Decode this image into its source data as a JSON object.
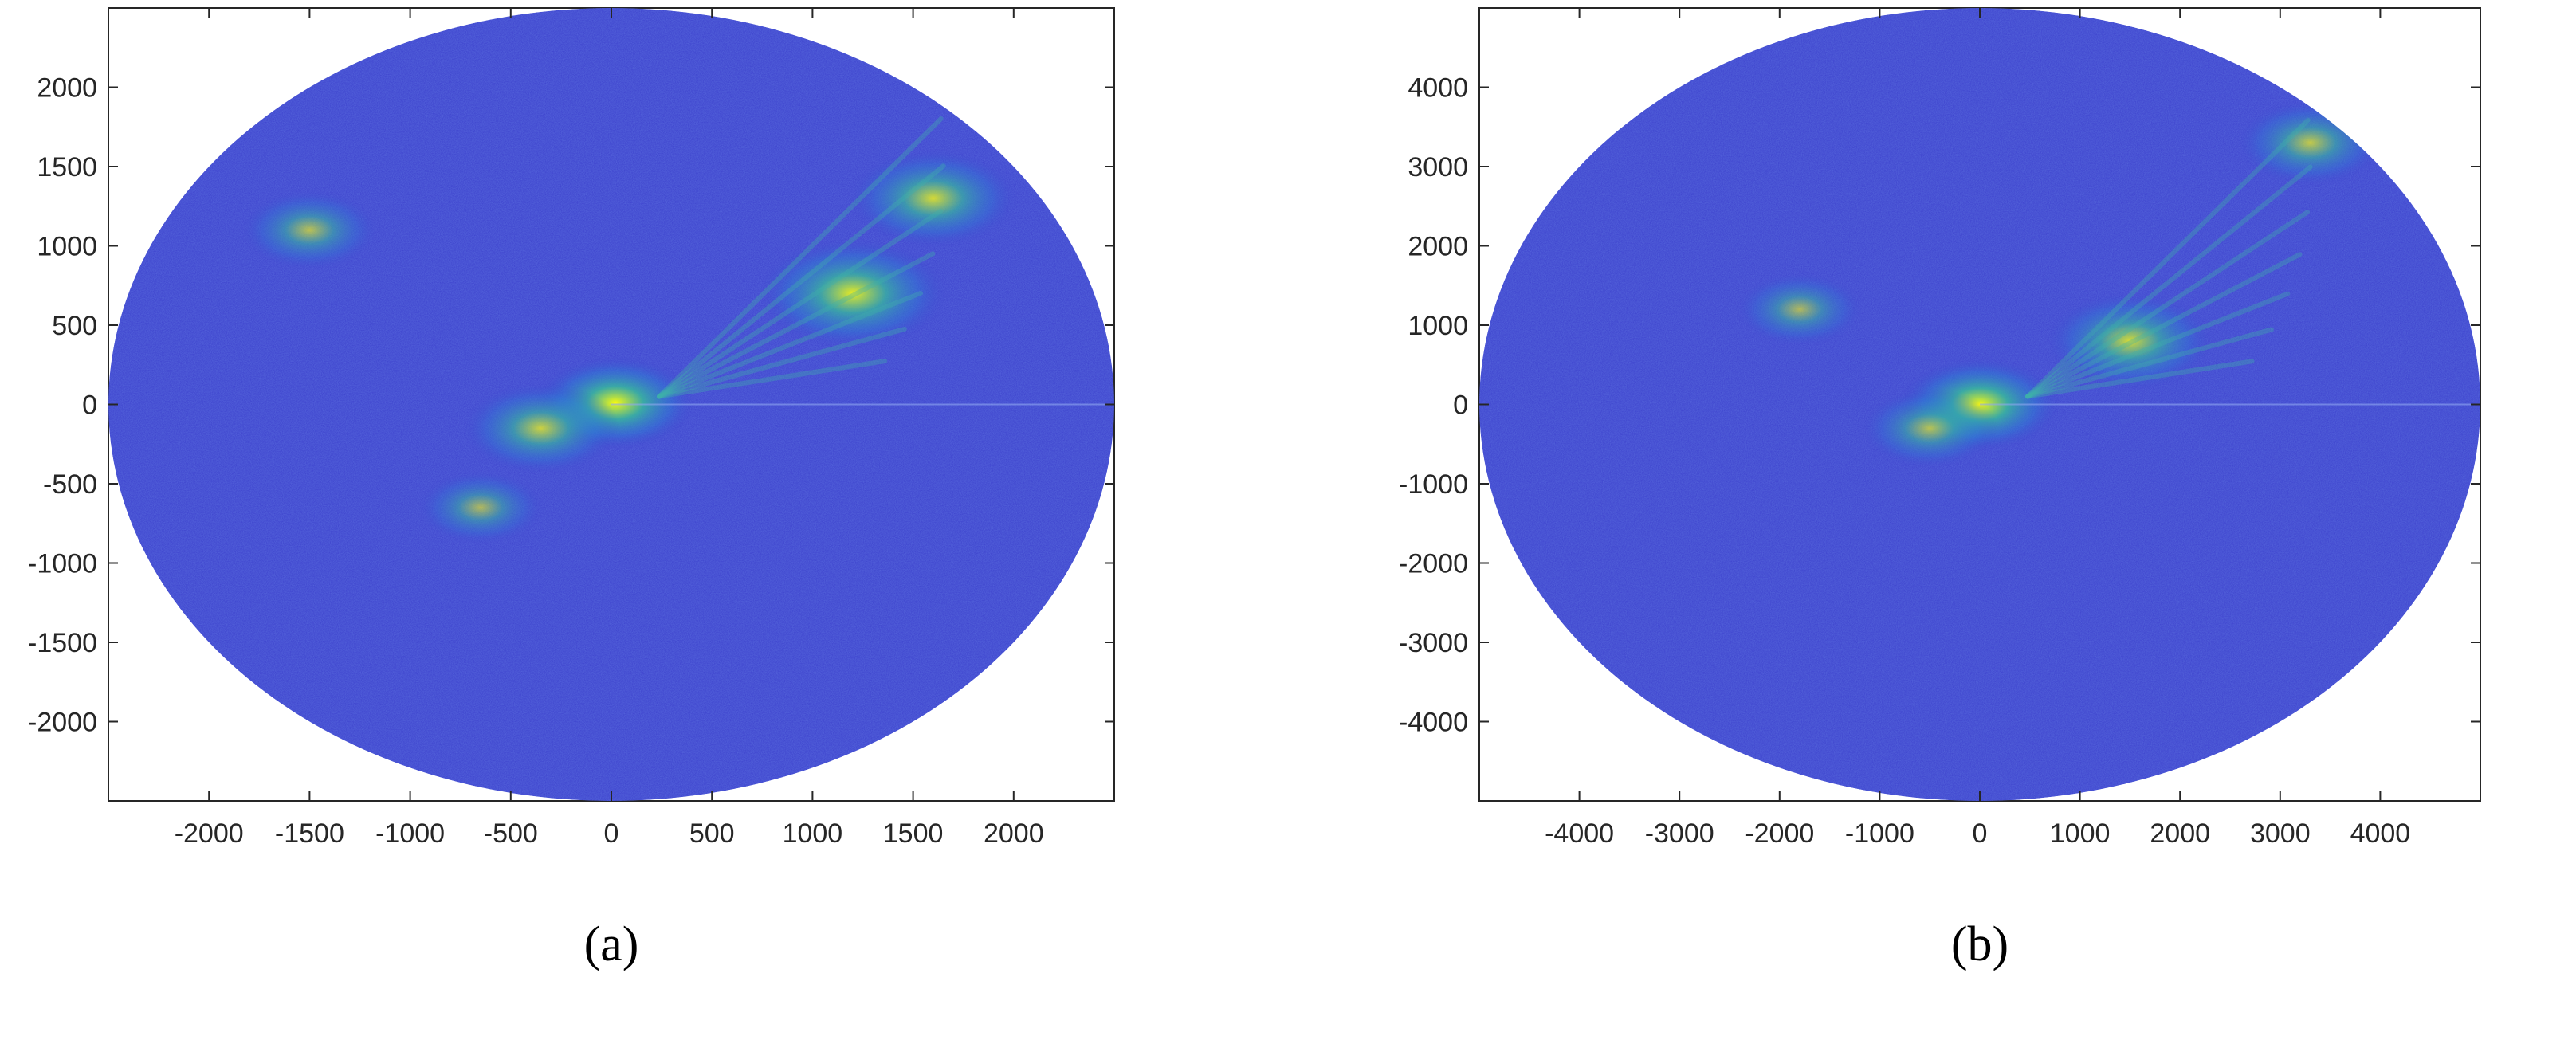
{
  "chart_data": [
    {
      "type": "heatmap",
      "panel_label": "(a)",
      "xlim": [
        -2500,
        2500
      ],
      "ylim": [
        -2500,
        2500
      ],
      "x_ticks": [
        -2000,
        -1500,
        -1000,
        -500,
        0,
        500,
        1000,
        1500,
        2000
      ],
      "y_ticks": [
        2000,
        1500,
        1000,
        500,
        0,
        -500,
        -1000,
        -1500,
        -2000
      ],
      "x_tick_labels": [
        "-2000",
        "-1500",
        "-1000",
        "-500",
        "0",
        "500",
        "1000",
        "1500",
        "2000"
      ],
      "y_tick_labels": [
        "2000",
        "1500",
        "1000",
        "500",
        "0",
        "-500",
        "-1000",
        "-1500",
        "-2000"
      ],
      "grid": false,
      "colormap": "parula",
      "background_color": "#3b3fcc",
      "hotspots": [
        {
          "x": 20,
          "y": 10,
          "intensity": 1.0
        },
        {
          "x": 1200,
          "y": 700,
          "intensity": 0.7
        },
        {
          "x": 1600,
          "y": 1300,
          "intensity": 0.6
        },
        {
          "x": -1500,
          "y": 1100,
          "intensity": 0.45
        },
        {
          "x": -350,
          "y": -150,
          "intensity": 0.55
        },
        {
          "x": -650,
          "y": -650,
          "intensity": 0.4
        }
      ]
    },
    {
      "type": "heatmap",
      "panel_label": "(b)",
      "xlim": [
        -5000,
        5000
      ],
      "ylim": [
        -5000,
        5000
      ],
      "x_ticks": [
        -4000,
        -3000,
        -2000,
        -1000,
        0,
        1000,
        2000,
        3000,
        4000
      ],
      "y_ticks": [
        4000,
        3000,
        2000,
        1000,
        0,
        -1000,
        -2000,
        -3000,
        -4000
      ],
      "x_tick_labels": [
        "-4000",
        "-3000",
        "-2000",
        "-1000",
        "0",
        "1000",
        "2000",
        "3000",
        "4000"
      ],
      "y_tick_labels": [
        "4000",
        "3000",
        "2000",
        "1000",
        "0",
        "-1000",
        "-2000",
        "-3000",
        "-4000"
      ],
      "grid": false,
      "colormap": "parula",
      "background_color": "#3b3fcc",
      "hotspots": [
        {
          "x": 0,
          "y": 0,
          "intensity": 1.0
        },
        {
          "x": 1500,
          "y": 800,
          "intensity": 0.6
        },
        {
          "x": 3300,
          "y": 3300,
          "intensity": 0.5
        },
        {
          "x": -1800,
          "y": 1200,
          "intensity": 0.4
        },
        {
          "x": -500,
          "y": -300,
          "intensity": 0.45
        }
      ]
    }
  ]
}
